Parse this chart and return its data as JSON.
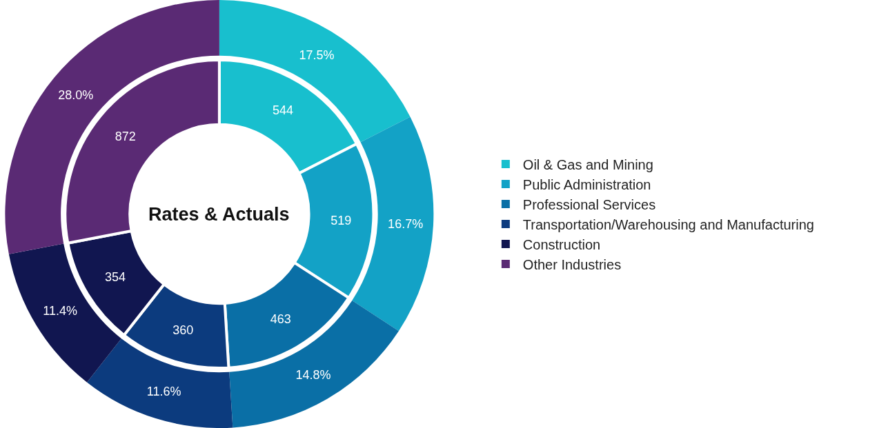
{
  "chart_data": {
    "type": "donut",
    "title": "Rates & Actuals",
    "categories": [
      "Oil & Gas and Mining",
      "Public Administration",
      "Professional Services",
      "Transportation/Warehousing and Manufacturing",
      "Construction",
      "Other Industries"
    ],
    "colors": [
      "#18bfce",
      "#13a2c6",
      "#0a6fa6",
      "#0c3b7e",
      "#111650",
      "#5a2a74"
    ],
    "series": [
      {
        "values": [
          17.5,
          16.7,
          14.8,
          11.6,
          11.4,
          28.0
        ],
        "value_labels": [
          "17.5%",
          "16.7%",
          "14.8%",
          "11.6%",
          "11.4%",
          "28.0%"
        ]
      },
      {
        "values": [
          544,
          519,
          463,
          360,
          354,
          872
        ],
        "value_labels": [
          "544",
          "519",
          "463",
          "360",
          "354",
          "872"
        ]
      }
    ],
    "legend": "right"
  }
}
